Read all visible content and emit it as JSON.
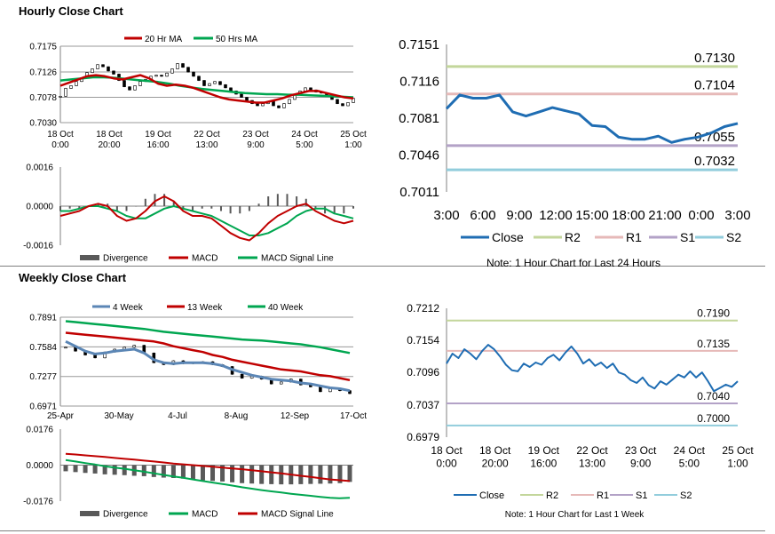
{
  "hourly": {
    "title": "Hourly Close Chart",
    "note": "Note: 1 Hour Chart for Last 24 Hours"
  },
  "weekly": {
    "title": "Weekly Close Chart",
    "note": "Note: 1 Hour Chart for Last 1 Week"
  },
  "colors": {
    "red": "#c00000",
    "green": "#00a650",
    "blue": "#1f6db3",
    "steel": "#5b86b5",
    "r2": "#c3d69b",
    "r1": "#e6b9b8",
    "s1": "#b3a2c7",
    "s2": "#92cddc",
    "gray": "#595959"
  },
  "chart_data": [
    {
      "id": "hourly_price",
      "type": "line",
      "title": "",
      "legend": [
        "20 Hr MA",
        "50 Hrs MA"
      ],
      "ylim": [
        0.703,
        0.7175
      ],
      "yticks": [
        "0.7175",
        "0.7126",
        "0.7078",
        "0.7030"
      ],
      "xticks": [
        "18 Oct\n0:00",
        "18 Oct\n20:00",
        "19 Oct\n16:00",
        "22 Oct\n13:00",
        "23 Oct\n9:00",
        "24 Oct\n5:00",
        "25 Oct\n1:00"
      ],
      "series": [
        {
          "name": "Close",
          "values": [
            0.708,
            0.7095,
            0.71,
            0.7108,
            0.7115,
            0.7125,
            0.7132,
            0.714,
            0.7136,
            0.7128,
            0.7122,
            0.711,
            0.7098,
            0.7092,
            0.71,
            0.7108,
            0.7112,
            0.7118,
            0.712,
            0.7118,
            0.7124,
            0.7132,
            0.7142,
            0.7135,
            0.7126,
            0.7118,
            0.711,
            0.71,
            0.7104,
            0.7108,
            0.7102,
            0.7096,
            0.709,
            0.7084,
            0.7078,
            0.7072,
            0.7066,
            0.7062,
            0.7066,
            0.707,
            0.7062,
            0.7058,
            0.7066,
            0.7074,
            0.7082,
            0.709,
            0.7096,
            0.7092,
            0.7088,
            0.7086,
            0.708,
            0.7074,
            0.7066,
            0.7062,
            0.7068,
            0.7076
          ]
        },
        {
          "name": "20 Hr MA",
          "values": [
            0.71,
            0.7106,
            0.7112,
            0.7118,
            0.712,
            0.7118,
            0.7114,
            0.7112,
            0.7116,
            0.712,
            0.7114,
            0.7104,
            0.71,
            0.7102,
            0.71,
            0.7096,
            0.709,
            0.7084,
            0.7078,
            0.7074,
            0.7072,
            0.707,
            0.7068,
            0.7068,
            0.7072,
            0.7076,
            0.7082,
            0.7086,
            0.709,
            0.709,
            0.7086,
            0.7082,
            0.7078,
            0.7076
          ]
        },
        {
          "name": "50 Hrs MA",
          "values": [
            0.711,
            0.7112,
            0.7114,
            0.7116,
            0.7116,
            0.7115,
            0.7113,
            0.7111,
            0.7109,
            0.7107,
            0.7104,
            0.71,
            0.7097,
            0.7094,
            0.7092,
            0.709,
            0.7088,
            0.7086,
            0.7085,
            0.7084,
            0.7084,
            0.7083,
            0.7083,
            0.7082,
            0.7081,
            0.708,
            0.7079,
            0.7078
          ]
        }
      ]
    },
    {
      "id": "hourly_macd",
      "type": "line",
      "legend": [
        "Divergence",
        "MACD",
        "MACD Signal Line"
      ],
      "ylim": [
        -0.0016,
        0.0016
      ],
      "yticks": [
        "0.0016",
        "0.0000",
        "-0.0016"
      ],
      "series": [
        {
          "name": "MACD",
          "values": [
            -0.0004,
            -0.0003,
            -0.0002,
            0.0,
            0.0001,
            0.0,
            -0.0004,
            -0.0006,
            -0.0005,
            -0.0002,
            0.0002,
            0.0004,
            0.0002,
            -0.0002,
            -0.0004,
            -0.0004,
            -0.0005,
            -0.0008,
            -0.0011,
            -0.0013,
            -0.0014,
            -0.0011,
            -0.0007,
            -0.0004,
            -0.0002,
            0.0,
            0.0001,
            -0.0002,
            -0.0004,
            -0.0006,
            -0.0007,
            -0.0006
          ]
        },
        {
          "name": "MACD Signal Line",
          "values": [
            -0.0002,
            -0.0002,
            -0.0001,
            0.0,
            0.0,
            -0.0001,
            -0.0002,
            -0.0004,
            -0.0005,
            -0.0005,
            -0.0003,
            -0.0001,
            0.0,
            -0.0001,
            -0.0002,
            -0.0003,
            -0.0004,
            -0.0006,
            -0.0008,
            -0.001,
            -0.0012,
            -0.0012,
            -0.0011,
            -0.0009,
            -0.0007,
            -0.0004,
            -0.0002,
            -0.0001,
            -0.0001,
            -0.0003,
            -0.0004,
            -0.0005
          ]
        }
      ]
    },
    {
      "id": "hourly_sr",
      "type": "line",
      "ylim": [
        0.7011,
        0.7151
      ],
      "yticks": [
        "0.7151",
        "0.7116",
        "0.7081",
        "0.7046",
        "0.7011"
      ],
      "xticks": [
        "3:00",
        "6:00",
        "9:00",
        "12:00",
        "15:00",
        "18:00",
        "21:00",
        "0:00",
        "3:00"
      ],
      "legend": [
        "Close",
        "R2",
        "R1",
        "S1",
        "S2"
      ],
      "levels": [
        {
          "name": "R2",
          "value": 0.713,
          "label": "0.7130"
        },
        {
          "name": "R1",
          "value": 0.7104,
          "label": "0.7104"
        },
        {
          "name": "S1",
          "value": 0.7055,
          "label": "0.7055"
        },
        {
          "name": "S2",
          "value": 0.7032,
          "label": "0.7032"
        }
      ],
      "series": [
        {
          "name": "Close",
          "values": [
            0.709,
            0.7103,
            0.71,
            0.71,
            0.7103,
            0.7087,
            0.7083,
            0.7087,
            0.7091,
            0.7088,
            0.7085,
            0.7074,
            0.7073,
            0.7063,
            0.7061,
            0.7061,
            0.7064,
            0.7058,
            0.7061,
            0.7063,
            0.7067,
            0.7073,
            0.7076
          ]
        }
      ]
    },
    {
      "id": "weekly_price",
      "type": "line",
      "legend": [
        "4 Week",
        "13 Week",
        "40 Week"
      ],
      "ylim": [
        0.6971,
        0.7891
      ],
      "yticks": [
        "0.7891",
        "0.7584",
        "0.7277",
        "0.6971"
      ],
      "xticks": [
        "25-Apr",
        "30-May",
        "4-Jul",
        "8-Aug",
        "12-Sep",
        "17-Oct"
      ],
      "series": [
        {
          "name": "Close",
          "values": [
            0.758,
            0.754,
            0.75,
            0.747,
            0.753,
            0.756,
            0.758,
            0.76,
            0.752,
            0.742,
            0.74,
            0.744,
            0.741,
            0.742,
            0.743,
            0.74,
            0.738,
            0.73,
            0.726,
            0.728,
            0.725,
            0.72,
            0.722,
            0.725,
            0.719,
            0.717,
            0.712,
            0.715,
            0.713,
            0.71
          ]
        },
        {
          "name": "4 Week",
          "values": [
            0.764,
            0.759,
            0.754,
            0.751,
            0.752,
            0.754,
            0.755,
            0.756,
            0.752,
            0.745,
            0.742,
            0.741,
            0.742,
            0.742,
            0.742,
            0.741,
            0.739,
            0.735,
            0.732,
            0.729,
            0.727,
            0.725,
            0.724,
            0.723,
            0.721,
            0.72,
            0.718,
            0.716,
            0.715,
            0.713
          ]
        },
        {
          "name": "13 Week",
          "values": [
            0.773,
            0.772,
            0.771,
            0.77,
            0.769,
            0.768,
            0.767,
            0.766,
            0.765,
            0.764,
            0.762,
            0.759,
            0.757,
            0.755,
            0.753,
            0.75,
            0.748,
            0.745,
            0.743,
            0.741,
            0.739,
            0.737,
            0.735,
            0.734,
            0.733,
            0.731,
            0.729,
            0.728,
            0.726,
            0.724
          ]
        },
        {
          "name": "40 Week",
          "values": [
            0.785,
            0.784,
            0.783,
            0.782,
            0.781,
            0.78,
            0.779,
            0.778,
            0.777,
            0.7755,
            0.774,
            0.773,
            0.772,
            0.771,
            0.77,
            0.769,
            0.768,
            0.767,
            0.766,
            0.7655,
            0.765,
            0.764,
            0.763,
            0.762,
            0.761,
            0.7595,
            0.758,
            0.756,
            0.754,
            0.752
          ]
        }
      ]
    },
    {
      "id": "weekly_macd",
      "type": "line",
      "legend": [
        "Divergence",
        "MACD",
        "MACD Signal Line"
      ],
      "ylim": [
        -0.0176,
        0.0176
      ],
      "yticks": [
        "0.0176",
        "0.0000",
        "-0.0176"
      ],
      "series": [
        {
          "name": "MACD",
          "values": [
            0.0025,
            0.0018,
            0.001,
            0.0003,
            -0.0005,
            -0.0012,
            -0.0018,
            -0.0025,
            -0.0032,
            -0.004,
            -0.0048,
            -0.0055,
            -0.0062,
            -0.007,
            -0.0078,
            -0.0085,
            -0.0092,
            -0.01,
            -0.0108,
            -0.0115,
            -0.0122,
            -0.0128,
            -0.0134,
            -0.014,
            -0.0145,
            -0.015,
            -0.0155,
            -0.016,
            -0.0162,
            -0.016
          ]
        },
        {
          "name": "MACD Signal Line",
          "values": [
            0.0055,
            0.0052,
            0.0048,
            0.0044,
            0.004,
            0.0035,
            0.0031,
            0.0027,
            0.0022,
            0.0018,
            0.0013,
            0.0008,
            0.0004,
            0.0,
            -0.0004,
            -0.0008,
            -0.0012,
            -0.0016,
            -0.002,
            -0.0025,
            -0.003,
            -0.0035,
            -0.004,
            -0.0046,
            -0.0052,
            -0.0058,
            -0.0064,
            -0.007,
            -0.0074,
            -0.0078
          ]
        }
      ]
    },
    {
      "id": "weekly_sr",
      "type": "line",
      "ylim": [
        0.6979,
        0.7212
      ],
      "yticks": [
        "0.7212",
        "0.7154",
        "0.7096",
        "0.7037",
        "0.6979"
      ],
      "xticks": [
        "18 Oct\n0:00",
        "18 Oct\n20:00",
        "19 Oct\n16:00",
        "22 Oct\n13:00",
        "23 Oct\n9:00",
        "24 Oct\n5:00",
        "25 Oct\n1:00"
      ],
      "legend": [
        "Close",
        "R2",
        "R1",
        "S1",
        "S2"
      ],
      "levels": [
        {
          "name": "R2",
          "value": 0.719,
          "label": "0.7190"
        },
        {
          "name": "R1",
          "value": 0.7135,
          "label": "0.7135"
        },
        {
          "name": "S1",
          "value": 0.704,
          "label": "0.7040"
        },
        {
          "name": "S2",
          "value": 0.7,
          "label": "0.7000"
        }
      ],
      "series": [
        {
          "name": "Close",
          "values": [
            0.7112,
            0.713,
            0.7122,
            0.7138,
            0.713,
            0.712,
            0.7135,
            0.7146,
            0.7138,
            0.7125,
            0.711,
            0.71,
            0.7098,
            0.7112,
            0.7106,
            0.7114,
            0.711,
            0.7122,
            0.7128,
            0.7118,
            0.7132,
            0.7143,
            0.713,
            0.7112,
            0.712,
            0.7108,
            0.7114,
            0.7104,
            0.7112,
            0.7096,
            0.7092,
            0.7082,
            0.7077,
            0.7087,
            0.7073,
            0.7067,
            0.708,
            0.7074,
            0.7083,
            0.7092,
            0.7087,
            0.7098,
            0.7087,
            0.7096,
            0.708,
            0.7062,
            0.7068,
            0.7074,
            0.707,
            0.708
          ]
        }
      ]
    }
  ]
}
